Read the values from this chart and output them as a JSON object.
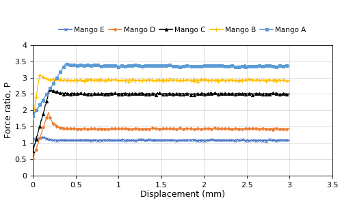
{
  "title": "",
  "xlabel": "Displacement (mm)",
  "ylabel": "Force ratio, P",
  "xlim": [
    0,
    3.5
  ],
  "ylim": [
    0,
    4
  ],
  "xticks": [
    0,
    0.5,
    1.0,
    1.5,
    2.0,
    2.5,
    3.0,
    3.5
  ],
  "yticks": [
    0,
    0.5,
    1.0,
    1.5,
    2.0,
    2.5,
    3.0,
    3.5,
    4.0
  ],
  "series": [
    {
      "label": "Mango E",
      "color": "#4472C4",
      "marker": "x",
      "markersize": 2.5,
      "start": 1.1,
      "peak_x": 0.13,
      "peak_y": 1.18,
      "dip_x": 0.22,
      "dip_y": 1.05,
      "plateau": 1.08,
      "decay_rate": 25.0,
      "noise": 0.012
    },
    {
      "label": "Mango D",
      "color": "#ED7D31",
      "marker": "o",
      "markersize": 2.5,
      "start": 0.5,
      "peak_x": 0.18,
      "peak_y": 1.93,
      "dip_x": 0.28,
      "dip_y": 1.37,
      "plateau": 1.43,
      "decay_rate": 18.0,
      "noise": 0.012
    },
    {
      "label": "Mango C",
      "color": "#000000",
      "marker": "^",
      "markersize": 3.0,
      "start": 0.75,
      "peak_x": 0.2,
      "peak_y": 2.65,
      "dip_x": 0.32,
      "dip_y": 2.38,
      "plateau": 2.5,
      "decay_rate": 15.0,
      "noise": 0.015
    },
    {
      "label": "Mango B",
      "color": "#FFC000",
      "marker": "+",
      "markersize": 4.0,
      "start": 1.75,
      "peak_x": 0.08,
      "peak_y": 3.12,
      "dip_x": 0.15,
      "dip_y": 2.9,
      "plateau": 2.92,
      "decay_rate": 20.0,
      "noise": 0.02
    },
    {
      "label": "Mango A",
      "color": "#5B9BD5",
      "marker": "s",
      "markersize": 3.0,
      "start": 1.82,
      "peak_x": 0.38,
      "peak_y": 3.42,
      "dip_x": 0.55,
      "dip_y": 3.32,
      "plateau": 3.36,
      "decay_rate": 8.0,
      "noise": 0.012
    }
  ],
  "figsize": [
    5.0,
    2.97
  ],
  "dpi": 100
}
